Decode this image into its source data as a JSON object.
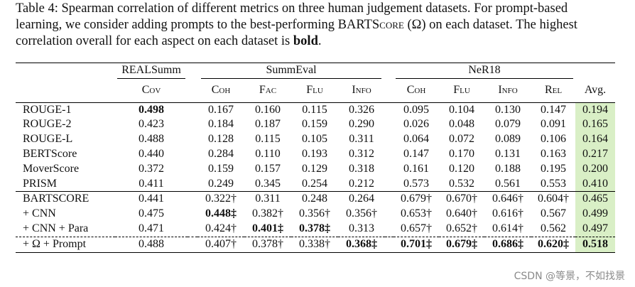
{
  "caption": {
    "part1": "Table 4: Spearman correlation of different metrics on three human judgement datasets. For prompt-based learning, we consider adding prompts to the best-performing BARTS",
    "score_sc": "core",
    "part2": " (Ω) on each dataset. The highest correlation overall for each aspect on each dataset is ",
    "bold_word": "bold",
    "part3": "."
  },
  "groups": {
    "realsumm": "REALSumm",
    "summeval": "SummEval",
    "ner18": "NeR18"
  },
  "columns": [
    "Cov",
    "Coh",
    "Fac",
    "Flu",
    "Info",
    "Coh",
    "Flu",
    "Info",
    "Rel",
    "Avg."
  ],
  "rows_top": [
    {
      "name": "ROUGE-1",
      "cells": [
        "0.498",
        "0.167",
        "0.160",
        "0.115",
        "0.326",
        "0.095",
        "0.104",
        "0.130",
        "0.147",
        "0.194"
      ]
    },
    {
      "name": "ROUGE-2",
      "cells": [
        "0.423",
        "0.184",
        "0.187",
        "0.159",
        "0.290",
        "0.026",
        "0.048",
        "0.079",
        "0.091",
        "0.165"
      ]
    },
    {
      "name": "ROUGE-L",
      "cells": [
        "0.488",
        "0.128",
        "0.115",
        "0.105",
        "0.311",
        "0.064",
        "0.072",
        "0.089",
        "0.106",
        "0.164"
      ]
    },
    {
      "name": "BERTScore",
      "cells": [
        "0.440",
        "0.284",
        "0.110",
        "0.193",
        "0.312",
        "0.147",
        "0.170",
        "0.131",
        "0.163",
        "0.217"
      ]
    },
    {
      "name": "MoverScore",
      "cells": [
        "0.372",
        "0.159",
        "0.157",
        "0.129",
        "0.318",
        "0.161",
        "0.120",
        "0.188",
        "0.195",
        "0.200"
      ]
    },
    {
      "name": "PRISM",
      "cells": [
        "0.411",
        "0.249",
        "0.345",
        "0.254",
        "0.212",
        "0.573",
        "0.532",
        "0.561",
        "0.553",
        "0.410"
      ]
    }
  ],
  "rows_bart": [
    {
      "name": "BARTSCORE",
      "cells": [
        "0.441",
        "0.322†",
        "0.311",
        "0.248",
        "0.264",
        "0.679†",
        "0.670†",
        "0.646†",
        "0.604†",
        "0.465"
      ]
    },
    {
      "name": "+ CNN",
      "cells": [
        "0.475",
        "0.448‡",
        "0.382†",
        "0.356†",
        "0.356†",
        "0.653†",
        "0.640†",
        "0.616†",
        "0.567",
        "0.499"
      ]
    },
    {
      "name": "+ CNN + Para",
      "cells": [
        "0.471",
        "0.424†",
        "0.401‡",
        "0.378‡",
        "0.313",
        "0.657†",
        "0.652†",
        "0.614†",
        "0.562",
        "0.497"
      ]
    },
    {
      "name": "+ Ω + Prompt",
      "cells": [
        "0.488",
        "0.407†",
        "0.378†",
        "0.338†",
        "0.368‡",
        "0.701‡",
        "0.679‡",
        "0.686‡",
        "0.620‡",
        "0.518"
      ]
    }
  ],
  "watermark": "CSDN @等景，不如找景"
}
